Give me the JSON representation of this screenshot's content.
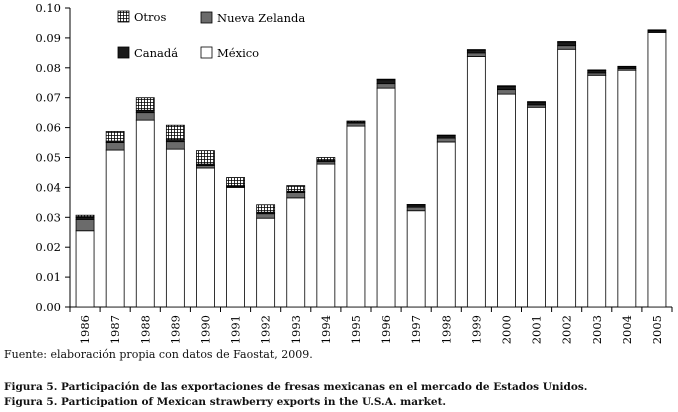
{
  "chart_data": {
    "type": "bar",
    "stacked": true,
    "categories": [
      "1986",
      "1987",
      "1988",
      "1989",
      "1990",
      "1991",
      "1992",
      "1993",
      "1994",
      "1995",
      "1996",
      "1997",
      "1998",
      "1999",
      "2000",
      "2001",
      "2002",
      "2003",
      "2004",
      "2005"
    ],
    "series": [
      {
        "name": "México",
        "pattern": "white",
        "values": [
          0.0255,
          0.0525,
          0.0625,
          0.0528,
          0.0465,
          0.04,
          0.0297,
          0.0365,
          0.0478,
          0.0605,
          0.0732,
          0.0322,
          0.0552,
          0.0838,
          0.0712,
          0.0668,
          0.0862,
          0.0775,
          0.0792,
          0.0918
        ]
      },
      {
        "name": "Nueva Zelanda",
        "pattern": "gray",
        "values": [
          0.0038,
          0.0025,
          0.0025,
          0.0025,
          0.0008,
          0.0003,
          0.0015,
          0.0018,
          0.0008,
          0.001,
          0.0015,
          0.0012,
          0.0013,
          0.0012,
          0.0015,
          0.0008,
          0.0012,
          0.0008,
          0.0006,
          0.0004
        ]
      },
      {
        "name": "Canadá",
        "pattern": "black",
        "values": [
          0.0007,
          0.0005,
          0.0008,
          0.0007,
          0.0005,
          0.0003,
          0.0005,
          0.0004,
          0.0004,
          0.0004,
          0.0013,
          0.0008,
          0.0008,
          0.0009,
          0.0011,
          0.0009,
          0.0012,
          0.0008,
          0.0005,
          0.0003
        ]
      },
      {
        "name": "Otros",
        "pattern": "grid",
        "values": [
          0.0007,
          0.0032,
          0.0042,
          0.0048,
          0.0045,
          0.0027,
          0.0025,
          0.0019,
          0.001,
          0.0003,
          0.0002,
          0.0001,
          0.0002,
          0.0002,
          0.0002,
          0.0002,
          0.0002,
          0.0002,
          0.0002,
          0.0002
        ]
      }
    ],
    "legend_order": [
      "Otros",
      "Nueva Zelanda",
      "Canadá",
      "México"
    ],
    "legend_position": "top-left",
    "ylim": [
      0,
      0.1
    ],
    "yticks": [
      "0.00",
      "0.01",
      "0.02",
      "0.03",
      "0.04",
      "0.05",
      "0.06",
      "0.07",
      "0.08",
      "0.09",
      "0.10"
    ],
    "xlabel": "",
    "ylabel": "",
    "title": ""
  },
  "source_note": "Fuente: elaboración propia con datos de Faostat, 2009.",
  "caption_es": "Figura 5. Participación de las exportaciones de fresas mexicanas en el mercado de Estados Unidos.",
  "caption_en": "Figura 5. Participation of Mexican strawberry exports in the U.S.A. market.",
  "colors": {
    "gray": "#6b6b6b",
    "black": "#1a1a1a",
    "white": "#ffffff",
    "axis": "#000000"
  }
}
